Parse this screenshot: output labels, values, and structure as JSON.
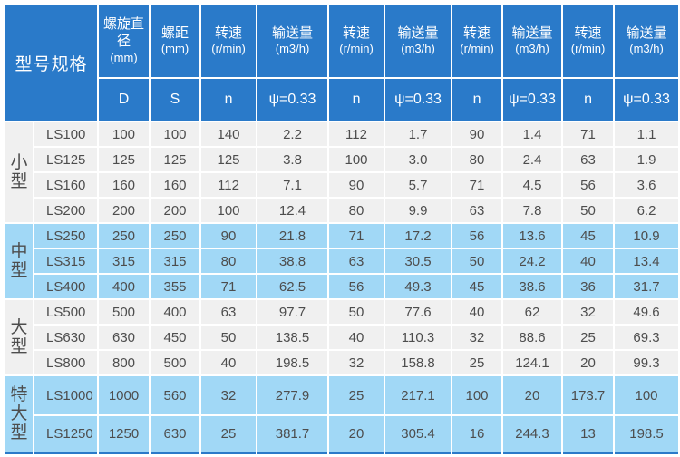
{
  "colors": {
    "header_bg": "#2a7ac9",
    "row_blue": "#a1d8f6",
    "row_gray": "#f0f0f0",
    "header_text": "#ffffff",
    "body_text": "#4d4d4d",
    "grid": "#ffffff"
  },
  "chart_data": {
    "type": "table",
    "corner_header": "型号规格",
    "columns": [
      {
        "label": "螺旋直径",
        "unit": "(mm)",
        "sub": "D"
      },
      {
        "label": "螺距",
        "unit": "(mm)",
        "sub": "S"
      },
      {
        "label": "转速",
        "unit": "(r/min)",
        "sub": "n"
      },
      {
        "label": "输送量",
        "unit": "(m3/h)",
        "sub": "ψ=0.33"
      },
      {
        "label": "转速",
        "unit": "(r/min)",
        "sub": "n"
      },
      {
        "label": "输送量",
        "unit": "(m3/h)",
        "sub": "ψ=0.33"
      },
      {
        "label": "转速",
        "unit": "(r/min)",
        "sub": "n"
      },
      {
        "label": "输送量",
        "unit": "(m3/h)",
        "sub": "ψ=0.33"
      },
      {
        "label": "转速",
        "unit": "(r/min)",
        "sub": "n"
      },
      {
        "label": "输送量",
        "unit": "(m3/h)",
        "sub": "ψ=0.33"
      }
    ],
    "groups": [
      {
        "name": "小型",
        "tone": "gray",
        "tall": false,
        "rows": [
          {
            "model": "LS100",
            "values": [
              "100",
              "100",
              "140",
              "2.2",
              "112",
              "1.7",
              "90",
              "1.4",
              "71",
              "1.1"
            ]
          },
          {
            "model": "LS125",
            "values": [
              "125",
              "125",
              "125",
              "3.8",
              "100",
              "3.0",
              "80",
              "2.4",
              "63",
              "1.9"
            ]
          },
          {
            "model": "LS160",
            "values": [
              "160",
              "160",
              "112",
              "7.1",
              "90",
              "5.7",
              "71",
              "4.5",
              "56",
              "3.6"
            ]
          },
          {
            "model": "LS200",
            "values": [
              "200",
              "200",
              "100",
              "12.4",
              "80",
              "9.9",
              "63",
              "7.8",
              "50",
              "6.2"
            ]
          }
        ]
      },
      {
        "name": "中型",
        "tone": "blue",
        "tall": false,
        "rows": [
          {
            "model": "LS250",
            "values": [
              "250",
              "250",
              "90",
              "21.8",
              "71",
              "17.2",
              "56",
              "13.6",
              "45",
              "10.9"
            ]
          },
          {
            "model": "LS315",
            "values": [
              "315",
              "315",
              "80",
              "38.8",
              "63",
              "30.5",
              "50",
              "24.2",
              "40",
              "13.4"
            ]
          },
          {
            "model": "LS400",
            "values": [
              "400",
              "355",
              "71",
              "62.5",
              "56",
              "49.3",
              "45",
              "38.6",
              "36",
              "31.7"
            ]
          }
        ]
      },
      {
        "name": "大型",
        "tone": "gray",
        "tall": false,
        "rows": [
          {
            "model": "LS500",
            "values": [
              "500",
              "400",
              "63",
              "97.7",
              "50",
              "77.6",
              "40",
              "62",
              "32",
              "49.6"
            ]
          },
          {
            "model": "LS630",
            "values": [
              "630",
              "450",
              "50",
              "138.5",
              "40",
              "110.3",
              "32",
              "88.6",
              "25",
              "69.3"
            ]
          },
          {
            "model": "LS800",
            "values": [
              "800",
              "500",
              "40",
              "198.5",
              "32",
              "158.8",
              "25",
              "124.1",
              "20",
              "99.3"
            ]
          }
        ]
      },
      {
        "name": "特大型",
        "tone": "blue",
        "tall": true,
        "rows": [
          {
            "model": "LS1000",
            "values": [
              "1000",
              "560",
              "32",
              "277.9",
              "25",
              "217.1",
              "100",
              "20",
              "173.7",
              "100"
            ]
          },
          {
            "model": "LS1250",
            "values": [
              "1250",
              "630",
              "25",
              "381.7",
              "20",
              "305.4",
              "16",
              "244.3",
              "13",
              "198.5"
            ]
          }
        ]
      }
    ]
  }
}
